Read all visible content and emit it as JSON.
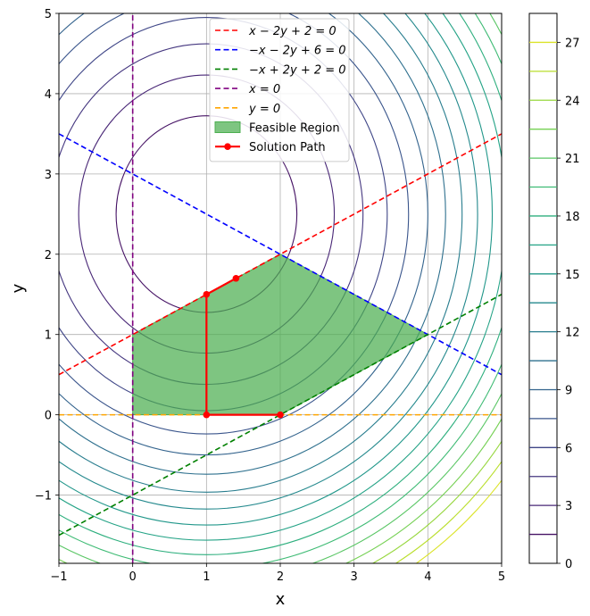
{
  "chart_data": {
    "type": "contour",
    "xlabel": "x",
    "ylabel": "y",
    "xlim": [
      -1,
      5
    ],
    "ylim": [
      -1.85,
      5
    ],
    "x_ticks": [
      "−1",
      "0",
      "1",
      "2",
      "3",
      "4",
      "5"
    ],
    "y_ticks": [
      "−1",
      "0",
      "1",
      "2",
      "3",
      "4",
      "5"
    ],
    "grid": true,
    "legend_position": "top-center",
    "contours": {
      "function": "(x-1)^2 + (y-2.5)^2",
      "center": [
        1,
        2.5
      ],
      "levels": [
        1.5,
        3,
        4.5,
        6,
        7.5,
        9,
        10.5,
        12,
        13.5,
        15,
        16.5,
        18,
        19.5,
        21,
        22.5,
        24,
        25.5,
        27
      ],
      "colormap": [
        "#440154",
        "#482878",
        "#3e4989",
        "#31688e",
        "#26828e",
        "#1f9e89",
        "#35b779",
        "#6ece58",
        "#b5de2b",
        "#fde725"
      ]
    },
    "colorbar": {
      "ticks": [
        "0",
        "3",
        "6",
        "9",
        "12",
        "15",
        "18",
        "21",
        "24",
        "27"
      ],
      "range": [
        0,
        28.5
      ]
    },
    "lines": [
      {
        "label": "x − 2y + 2 = 0",
        "color": "#ff0000",
        "points": [
          [
            -1,
            0.5
          ],
          [
            5,
            3.5
          ]
        ]
      },
      {
        "label": "−x − 2y + 6 = 0",
        "color": "#0000ff",
        "points": [
          [
            -1,
            3.5
          ],
          [
            5,
            0.5
          ]
        ]
      },
      {
        "label": "−x + 2y + 2 = 0",
        "color": "#008000",
        "points": [
          [
            -1,
            -1.5
          ],
          [
            5,
            1.5
          ]
        ]
      },
      {
        "label": "x = 0",
        "color": "#800080",
        "points": [
          [
            0,
            -1.85
          ],
          [
            0,
            5
          ]
        ]
      },
      {
        "label": "y = 0",
        "color": "#ffa500",
        "points": [
          [
            -1,
            0
          ],
          [
            5,
            0
          ]
        ]
      }
    ],
    "feasible_region": {
      "label": "Feasible Region",
      "color": "#4caf50",
      "vertices": [
        [
          0,
          0
        ],
        [
          2,
          0
        ],
        [
          4,
          1
        ],
        [
          2,
          2
        ],
        [
          0,
          1
        ]
      ]
    },
    "solution_path": {
      "label": "Solution Path",
      "color": "#ff0000",
      "points": [
        [
          2,
          0
        ],
        [
          1,
          0
        ],
        [
          1,
          1.5
        ],
        [
          1.4,
          1.7
        ]
      ]
    }
  }
}
